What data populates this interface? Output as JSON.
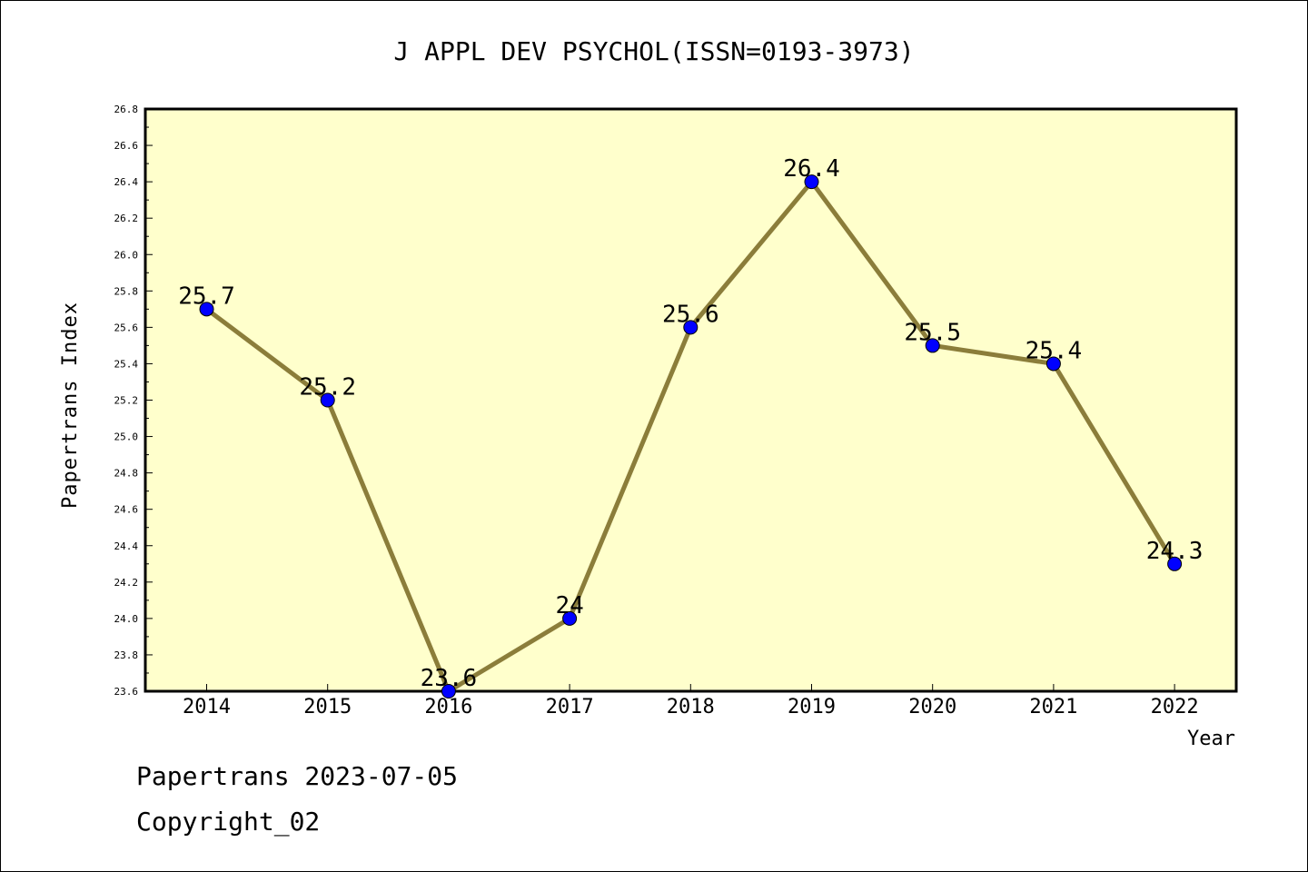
{
  "chart_data": {
    "type": "line",
    "title": "J APPL DEV PSYCHOL(ISSN=0193-3973)",
    "xlabel": "Year",
    "ylabel": "Papertrans Index",
    "categories": [
      "2014",
      "2015",
      "2016",
      "2017",
      "2018",
      "2019",
      "2020",
      "2021",
      "2022"
    ],
    "series": [
      {
        "values": [
          25.7,
          25.2,
          23.6,
          24.0,
          25.6,
          26.4,
          25.5,
          25.4,
          24.3
        ],
        "data_labels": [
          "25.7",
          "25.2",
          "23.6",
          "24",
          "25.6",
          "26.4",
          "25.5",
          "25.4",
          "24.3"
        ]
      }
    ],
    "ylim": [
      23.6,
      26.8
    ],
    "yticks": [
      "23.6",
      "23.8",
      "24.0",
      "24.2",
      "24.4",
      "24.6",
      "24.8",
      "25.0",
      "25.2",
      "25.4",
      "25.6",
      "25.8",
      "26.0",
      "26.2",
      "26.4",
      "26.6",
      "26.8"
    ],
    "grid": false,
    "colors": {
      "plot_background": "#ffffcc",
      "line": "#8b7d3a",
      "marker": "#0000ff"
    }
  },
  "footer": {
    "line1": "Papertrans 2023-07-05",
    "line2": "Copyright_02"
  }
}
